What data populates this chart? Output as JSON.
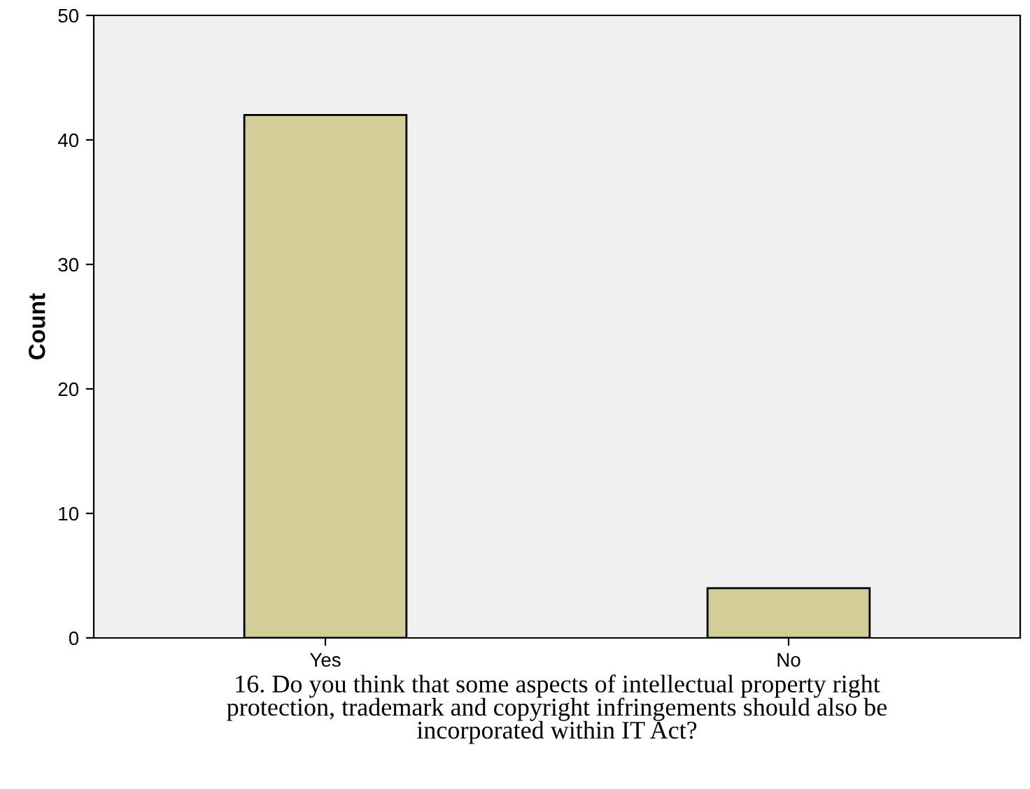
{
  "chart_data": {
    "type": "bar",
    "xlabel": "16. Do you think that some aspects of intellectual property right\nprotection, trademark and copyright infringements should also be\nincorporated within IT Act?",
    "ylabel": "Count",
    "categories": [
      "Yes",
      "No"
    ],
    "values": [
      42,
      4
    ],
    "color": "#d3ce97",
    "ylim": [
      0,
      50
    ],
    "yticks": [
      0,
      10,
      20,
      30,
      40,
      50
    ],
    "grid": false
  }
}
